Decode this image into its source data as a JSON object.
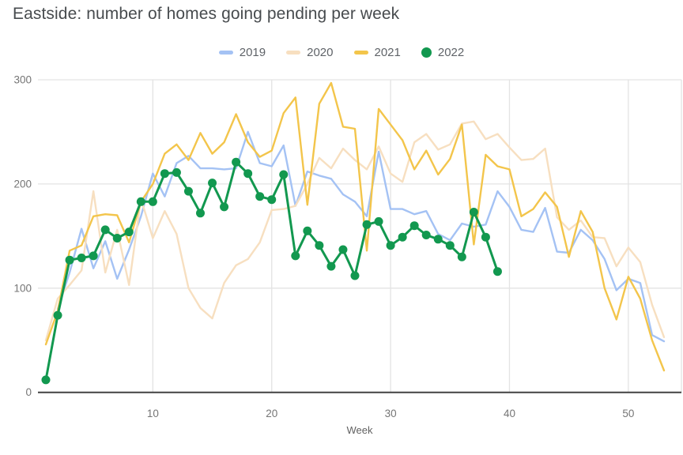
{
  "chart_data": {
    "type": "line",
    "title": "Eastside: number of homes going pending per week",
    "xlabel": "Week",
    "legend_position": "top",
    "grid": true,
    "xlim": [
      1,
      53
    ],
    "ylim": [
      0,
      300
    ],
    "x_ticks": [
      10,
      20,
      30,
      40,
      50
    ],
    "y_ticks": [
      0,
      100,
      200,
      300
    ],
    "x_unit": "week_number",
    "series": [
      {
        "name": "2019",
        "style": "line",
        "color": "#a4c2f4",
        "values": [
          null,
          80,
          115,
          157,
          119,
          145,
          109,
          137,
          169,
          210,
          188,
          220,
          227,
          215,
          215,
          214,
          215,
          250,
          220,
          217,
          237,
          179,
          212,
          208,
          205,
          190,
          183,
          169,
          231,
          176,
          176,
          171,
          174,
          152,
          146,
          162,
          159,
          161,
          193,
          178,
          156,
          154,
          177,
          135,
          134,
          156,
          146,
          128,
          98,
          109,
          105,
          55,
          49
        ]
      },
      {
        "name": "2020",
        "style": "line",
        "color": "#f7dfc0",
        "values": [
          50,
          90,
          103,
          117,
          193,
          115,
          156,
          103,
          186,
          148,
          174,
          152,
          100,
          81,
          71,
          105,
          122,
          128,
          144,
          175,
          176,
          179,
          200,
          225,
          215,
          234,
          223,
          214,
          236,
          210,
          202,
          240,
          248,
          233,
          238,
          258,
          260,
          243,
          248,
          235,
          223,
          224,
          234,
          168,
          156,
          165,
          149,
          148,
          121,
          139,
          125,
          84,
          53
        ]
      },
      {
        "name": "2021",
        "style": "line",
        "color": "#f3c54b",
        "values": [
          46,
          78,
          136,
          141,
          169,
          171,
          170,
          144,
          183,
          200,
          229,
          238,
          223,
          249,
          229,
          240,
          267,
          240,
          226,
          232,
          268,
          283,
          180,
          277,
          297,
          255,
          253,
          136,
          272,
          257,
          242,
          214,
          232,
          209,
          224,
          257,
          142,
          228,
          217,
          214,
          169,
          176,
          192,
          178,
          130,
          174,
          154,
          100,
          70,
          111,
          90,
          50,
          21
        ]
      },
      {
        "name": "2022",
        "style": "line_with_markers",
        "color": "#12984f",
        "values": [
          12,
          74,
          127,
          129,
          131,
          156,
          148,
          154,
          183,
          183,
          210,
          211,
          193,
          172,
          201,
          178,
          221,
          210,
          188,
          185,
          209,
          131,
          155,
          141,
          121,
          137,
          112,
          161,
          164,
          141,
          149,
          160,
          151,
          147,
          141,
          130,
          173,
          149,
          116
        ]
      }
    ],
    "axis_colors": {
      "grid_line": "#e3e3e3",
      "axis_line": "#424242",
      "tick_label": "#757575"
    }
  }
}
